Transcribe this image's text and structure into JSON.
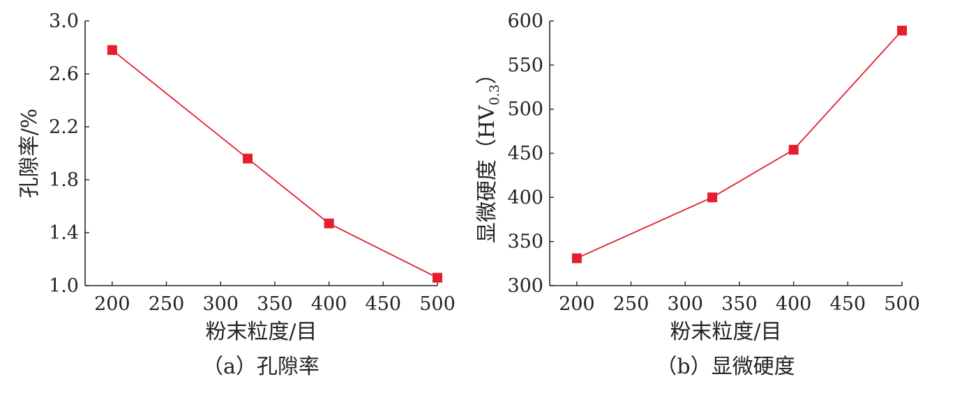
{
  "chart_data": [
    {
      "type": "line",
      "xlabel": "粉末粒度/目",
      "ylabel": "孔隙率/%",
      "caption": "（a）孔隙率",
      "xlim": [
        175,
        500
      ],
      "ylim": [
        1.0,
        3.0
      ],
      "x_ticks": [
        200,
        250,
        300,
        350,
        400,
        450,
        500
      ],
      "y_ticks": [
        1.0,
        1.4,
        1.8,
        2.2,
        2.6,
        3.0
      ],
      "y_tick_labels": [
        "1.0",
        "1.4",
        "1.8",
        "2.2",
        "2.6",
        "3.0"
      ],
      "grid": false,
      "marker": "square",
      "color": "#e31e2d",
      "series": [
        {
          "x": [
            200,
            325,
            400,
            500
          ],
          "y": [
            2.78,
            1.96,
            1.47,
            1.06
          ]
        }
      ]
    },
    {
      "type": "line",
      "xlabel": "粉末粒度/目",
      "ylabel_main": "显微硬度（HV",
      "ylabel_sub": "0.3",
      "ylabel_end": "）",
      "caption": "（b）显微硬度",
      "xlim": [
        175,
        500
      ],
      "ylim": [
        300,
        600
      ],
      "x_ticks": [
        200,
        250,
        300,
        350,
        400,
        450,
        500
      ],
      "y_ticks": [
        300,
        350,
        400,
        450,
        500,
        550,
        600
      ],
      "y_tick_labels": [
        "300",
        "350",
        "400",
        "450",
        "500",
        "550",
        "600"
      ],
      "grid": false,
      "marker": "square",
      "color": "#e31e2d",
      "series": [
        {
          "x": [
            200,
            325,
            400,
            500
          ],
          "y": [
            331,
            400,
            454,
            589
          ]
        }
      ]
    }
  ]
}
